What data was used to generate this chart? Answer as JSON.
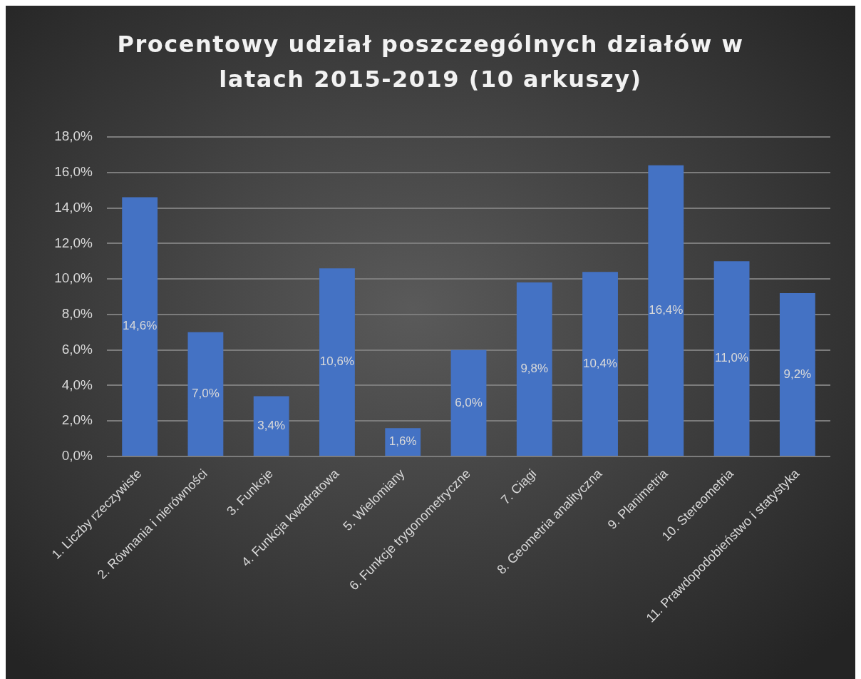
{
  "chart_data": {
    "type": "bar",
    "title": "Procentowy udział poszczególnych działów w latach 2015-2019 (10 arkuszy)",
    "categories": [
      "1. Liczby rzeczywiste",
      "2. Równania i nierówności",
      "3. Funkcje",
      "4. Funkcja kwadratowa",
      "5. Wielomiany",
      "6. Funkcje trygonometryczne",
      "7. Ciągi",
      "8. Geometria analityczna",
      "9. Planimetria",
      "10. Stereometria",
      "11. Prawdopodobieństwo i statystyka"
    ],
    "values": [
      14.6,
      7.0,
      3.4,
      10.6,
      1.6,
      6.0,
      9.8,
      10.4,
      16.4,
      11.0,
      9.2
    ],
    "color": "#4472c4",
    "value_labels": [
      "14,6%",
      "7,0%",
      "3,4%",
      "10,6%",
      "1,6%",
      "6,0%",
      "9,8%",
      "10,4%",
      "16,4%",
      "11,0%",
      "9,2%"
    ],
    "ylim": [
      0,
      18
    ],
    "yticks": [
      {
        "value": 0,
        "label": "0,0%"
      },
      {
        "value": 2,
        "label": "2,0%"
      },
      {
        "value": 4,
        "label": "4,0%"
      },
      {
        "value": 6,
        "label": "6,0%"
      },
      {
        "value": 8,
        "label": "8,0%"
      },
      {
        "value": 10,
        "label": "10,0%"
      },
      {
        "value": 12,
        "label": "12,0%"
      },
      {
        "value": 14,
        "label": "14,0%"
      },
      {
        "value": 16,
        "label": "16,0%"
      },
      {
        "value": 18,
        "label": "18,0%"
      }
    ],
    "grid": "y"
  }
}
